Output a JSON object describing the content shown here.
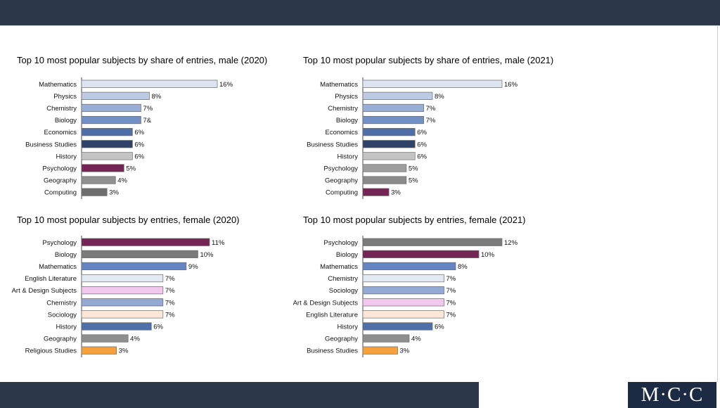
{
  "logo": {
    "text": "M·C·C"
  },
  "chart_data": [
    {
      "type": "bar",
      "orientation": "horizontal",
      "title": "Top 10 most popular subjects by share of entries, male (2020)",
      "categories": [
        "Mathematics",
        "Physics",
        "Chemistry",
        "Biology",
        "Economics",
        "Business Studies",
        "History",
        "Psychology",
        "Geography",
        "Computing"
      ],
      "values": [
        16,
        8,
        7,
        7,
        6,
        6,
        6,
        5,
        4,
        3
      ],
      "labels": [
        "16%",
        "8%",
        "7%",
        "7&",
        "6%",
        "6%",
        "6%",
        "5%",
        "4%",
        "3%"
      ],
      "colors": [
        "#dde4f0",
        "#bccbe3",
        "#99b0d6",
        "#7390c4",
        "#4f6fa9",
        "#2f4268",
        "#c4c4c4",
        "#742556",
        "#8f8f8f",
        "#6d6d6d"
      ],
      "xlim": [
        0,
        16
      ]
    },
    {
      "type": "bar",
      "orientation": "horizontal",
      "title": "Top 10 most popular subjects by share of entries, male (2021)",
      "categories": [
        "Mathematics",
        "Physics",
        "Chemistry",
        "Biology",
        "Economics",
        "Business Studies",
        "History",
        "Psychology",
        "Geography",
        "Computing"
      ],
      "values": [
        16,
        8,
        7,
        7,
        6,
        6,
        6,
        5,
        5,
        3
      ],
      "labels": [
        "16%",
        "8%",
        "7%",
        "7%",
        "6%",
        "6%",
        "6%",
        "5%",
        "5%",
        "3%"
      ],
      "colors": [
        "#dde4f0",
        "#bccbe3",
        "#99b0d6",
        "#7390c4",
        "#4f6fa9",
        "#2f4268",
        "#c4c4c4",
        "#9e9e9e",
        "#8a8a8a",
        "#742556"
      ],
      "xlim": [
        0,
        16
      ]
    },
    {
      "type": "bar",
      "orientation": "horizontal",
      "title": "Top 10 most popular subjects by entries, female (2020)",
      "categories": [
        "Psychology",
        "Biology",
        "Mathematics",
        "English Literature",
        "Art & Design Subjects",
        "Chemistry",
        "Sociology",
        "History",
        "Geography",
        "Religious Studies"
      ],
      "values": [
        11,
        10,
        9,
        7,
        7,
        7,
        7,
        6,
        4,
        3
      ],
      "labels": [
        "11%",
        "10%",
        "9%",
        "7%",
        "7%",
        "7%",
        "7%",
        "6%",
        "4%",
        "3%"
      ],
      "colors": [
        "#742556",
        "#7a7a7a",
        "#6584c2",
        "#e3e9f3",
        "#f2c8ee",
        "#94a9d3",
        "#fbe6d8",
        "#4f6fa9",
        "#8f8f8f",
        "#f4a13d"
      ],
      "xlim": [
        0,
        11
      ]
    },
    {
      "type": "bar",
      "orientation": "horizontal",
      "title": "Top 10 most popular subjects by entries, female (2021)",
      "categories": [
        "Psychology",
        "Biology",
        "Mathematics",
        "Chemistry",
        "Sociology",
        "Art & Design Subjects",
        "English Literature",
        "History",
        "Geography",
        "Business Studies"
      ],
      "values": [
        12,
        10,
        8,
        7,
        7,
        7,
        7,
        6,
        4,
        3
      ],
      "labels": [
        "12%",
        "10%",
        "8%",
        "7%",
        "7%",
        "7%",
        "7%",
        "6%",
        "4%",
        "3%"
      ],
      "colors": [
        "#7a7a7a",
        "#742556",
        "#6584c2",
        "#e3e9f3",
        "#94a9d3",
        "#f2c8ee",
        "#fbe6d8",
        "#4f6fa9",
        "#8f8f8f",
        "#f4a13d"
      ],
      "xlim": [
        0,
        12
      ]
    }
  ]
}
